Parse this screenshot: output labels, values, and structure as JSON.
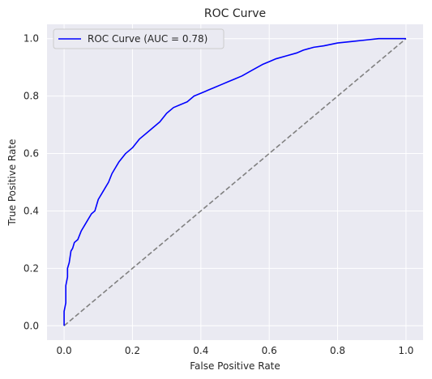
{
  "chart_data": {
    "type": "line",
    "title": "ROC Curve",
    "xlabel": "False Positive Rate",
    "ylabel": "True Positive Rate",
    "xlim": [
      -0.05,
      1.05
    ],
    "ylim": [
      -0.05,
      1.05
    ],
    "xticks": [
      "0.0",
      "0.2",
      "0.4",
      "0.6",
      "0.8",
      "1.0"
    ],
    "yticks": [
      "0.0",
      "0.2",
      "0.4",
      "0.6",
      "0.8",
      "1.0"
    ],
    "xtick_values": [
      0,
      0.2,
      0.4,
      0.6,
      0.8,
      1.0
    ],
    "ytick_values": [
      0,
      0.2,
      0.4,
      0.6,
      0.8,
      1.0
    ],
    "grid": true,
    "legend_position": "top-left",
    "background_color": "#eaeaf2",
    "series": [
      {
        "name": "ROC Curve (AUC = 0.78)",
        "color": "#0000ff",
        "x": [
          0.0,
          0.0,
          0.005,
          0.005,
          0.01,
          0.01,
          0.015,
          0.02,
          0.025,
          0.03,
          0.04,
          0.05,
          0.06,
          0.07,
          0.08,
          0.09,
          0.1,
          0.11,
          0.12,
          0.13,
          0.14,
          0.15,
          0.16,
          0.18,
          0.2,
          0.22,
          0.24,
          0.26,
          0.28,
          0.3,
          0.32,
          0.34,
          0.36,
          0.38,
          0.4,
          0.42,
          0.44,
          0.46,
          0.48,
          0.5,
          0.52,
          0.55,
          0.58,
          0.6,
          0.62,
          0.65,
          0.68,
          0.7,
          0.73,
          0.76,
          0.8,
          0.84,
          0.88,
          0.92,
          0.96,
          1.0
        ],
        "y": [
          0.0,
          0.05,
          0.08,
          0.14,
          0.17,
          0.2,
          0.22,
          0.26,
          0.27,
          0.29,
          0.3,
          0.33,
          0.35,
          0.37,
          0.39,
          0.4,
          0.44,
          0.46,
          0.48,
          0.5,
          0.53,
          0.55,
          0.57,
          0.6,
          0.62,
          0.65,
          0.67,
          0.69,
          0.71,
          0.74,
          0.76,
          0.77,
          0.78,
          0.8,
          0.81,
          0.82,
          0.83,
          0.84,
          0.85,
          0.86,
          0.87,
          0.89,
          0.91,
          0.92,
          0.93,
          0.94,
          0.95,
          0.96,
          0.97,
          0.975,
          0.985,
          0.99,
          0.995,
          1.0,
          1.0,
          1.0
        ]
      },
      {
        "name": "",
        "color": "#808080",
        "style": "dashed",
        "x": [
          0,
          1
        ],
        "y": [
          0,
          1
        ]
      }
    ]
  }
}
